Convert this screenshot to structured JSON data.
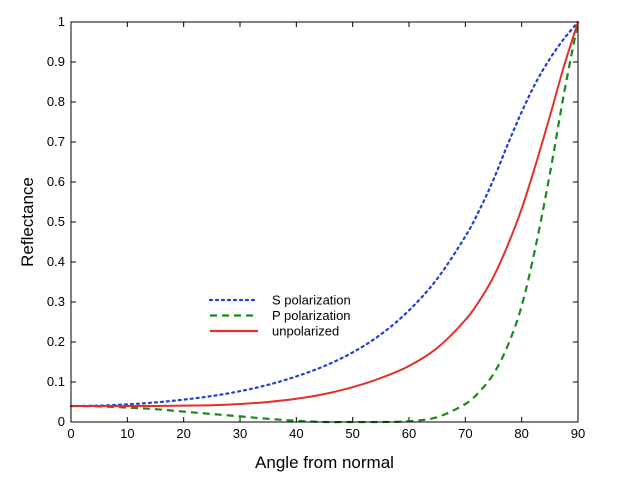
{
  "chart_data": {
    "type": "line",
    "title": "",
    "xlabel": "Angle from normal",
    "ylabel": "Reflectance",
    "xlim": [
      0,
      90
    ],
    "ylim": [
      0,
      1
    ],
    "xticks": [
      0,
      10,
      20,
      30,
      40,
      50,
      60,
      70,
      80,
      90
    ],
    "yticks": [
      0,
      0.1,
      0.2,
      0.3,
      0.4,
      0.5,
      0.6,
      0.7,
      0.8,
      0.9,
      1
    ],
    "ytick_labels": [
      "0",
      "0.1",
      "0.2",
      "0.3",
      "0.4",
      "0.5",
      "0.6",
      "0.7",
      "0.8",
      "0.9",
      "1"
    ],
    "grid": false,
    "legend_position": "center-left",
    "x": [
      0,
      5,
      10,
      15,
      20,
      25,
      30,
      35,
      40,
      45,
      50,
      55,
      60,
      65,
      70,
      72.5,
      75,
      77.5,
      80,
      82.5,
      85,
      87.5,
      90
    ],
    "series": [
      {
        "name": "S polarization",
        "style": "dotted",
        "color": "#1f3fd6",
        "values": [
          0.04,
          0.041,
          0.044,
          0.049,
          0.056,
          0.065,
          0.077,
          0.093,
          0.114,
          0.14,
          0.174,
          0.219,
          0.279,
          0.358,
          0.464,
          0.53,
          0.606,
          0.693,
          0.775,
          0.848,
          0.908,
          0.958,
          1.0
        ]
      },
      {
        "name": "P polarization",
        "style": "dashed",
        "color": "#1a8a1a",
        "values": [
          0.04,
          0.039,
          0.036,
          0.032,
          0.026,
          0.02,
          0.014,
          0.008,
          0.003,
          0.0,
          0.0,
          0.0,
          0.002,
          0.012,
          0.045,
          0.076,
          0.12,
          0.19,
          0.29,
          0.44,
          0.62,
          0.82,
          1.0
        ]
      },
      {
        "name": "unpolarized",
        "style": "solid",
        "color": "#e0302a",
        "values": [
          0.04,
          0.04,
          0.04,
          0.04,
          0.041,
          0.042,
          0.045,
          0.05,
          0.058,
          0.07,
          0.087,
          0.11,
          0.14,
          0.185,
          0.255,
          0.303,
          0.363,
          0.441,
          0.533,
          0.644,
          0.764,
          0.889,
          1.0
        ]
      }
    ]
  }
}
